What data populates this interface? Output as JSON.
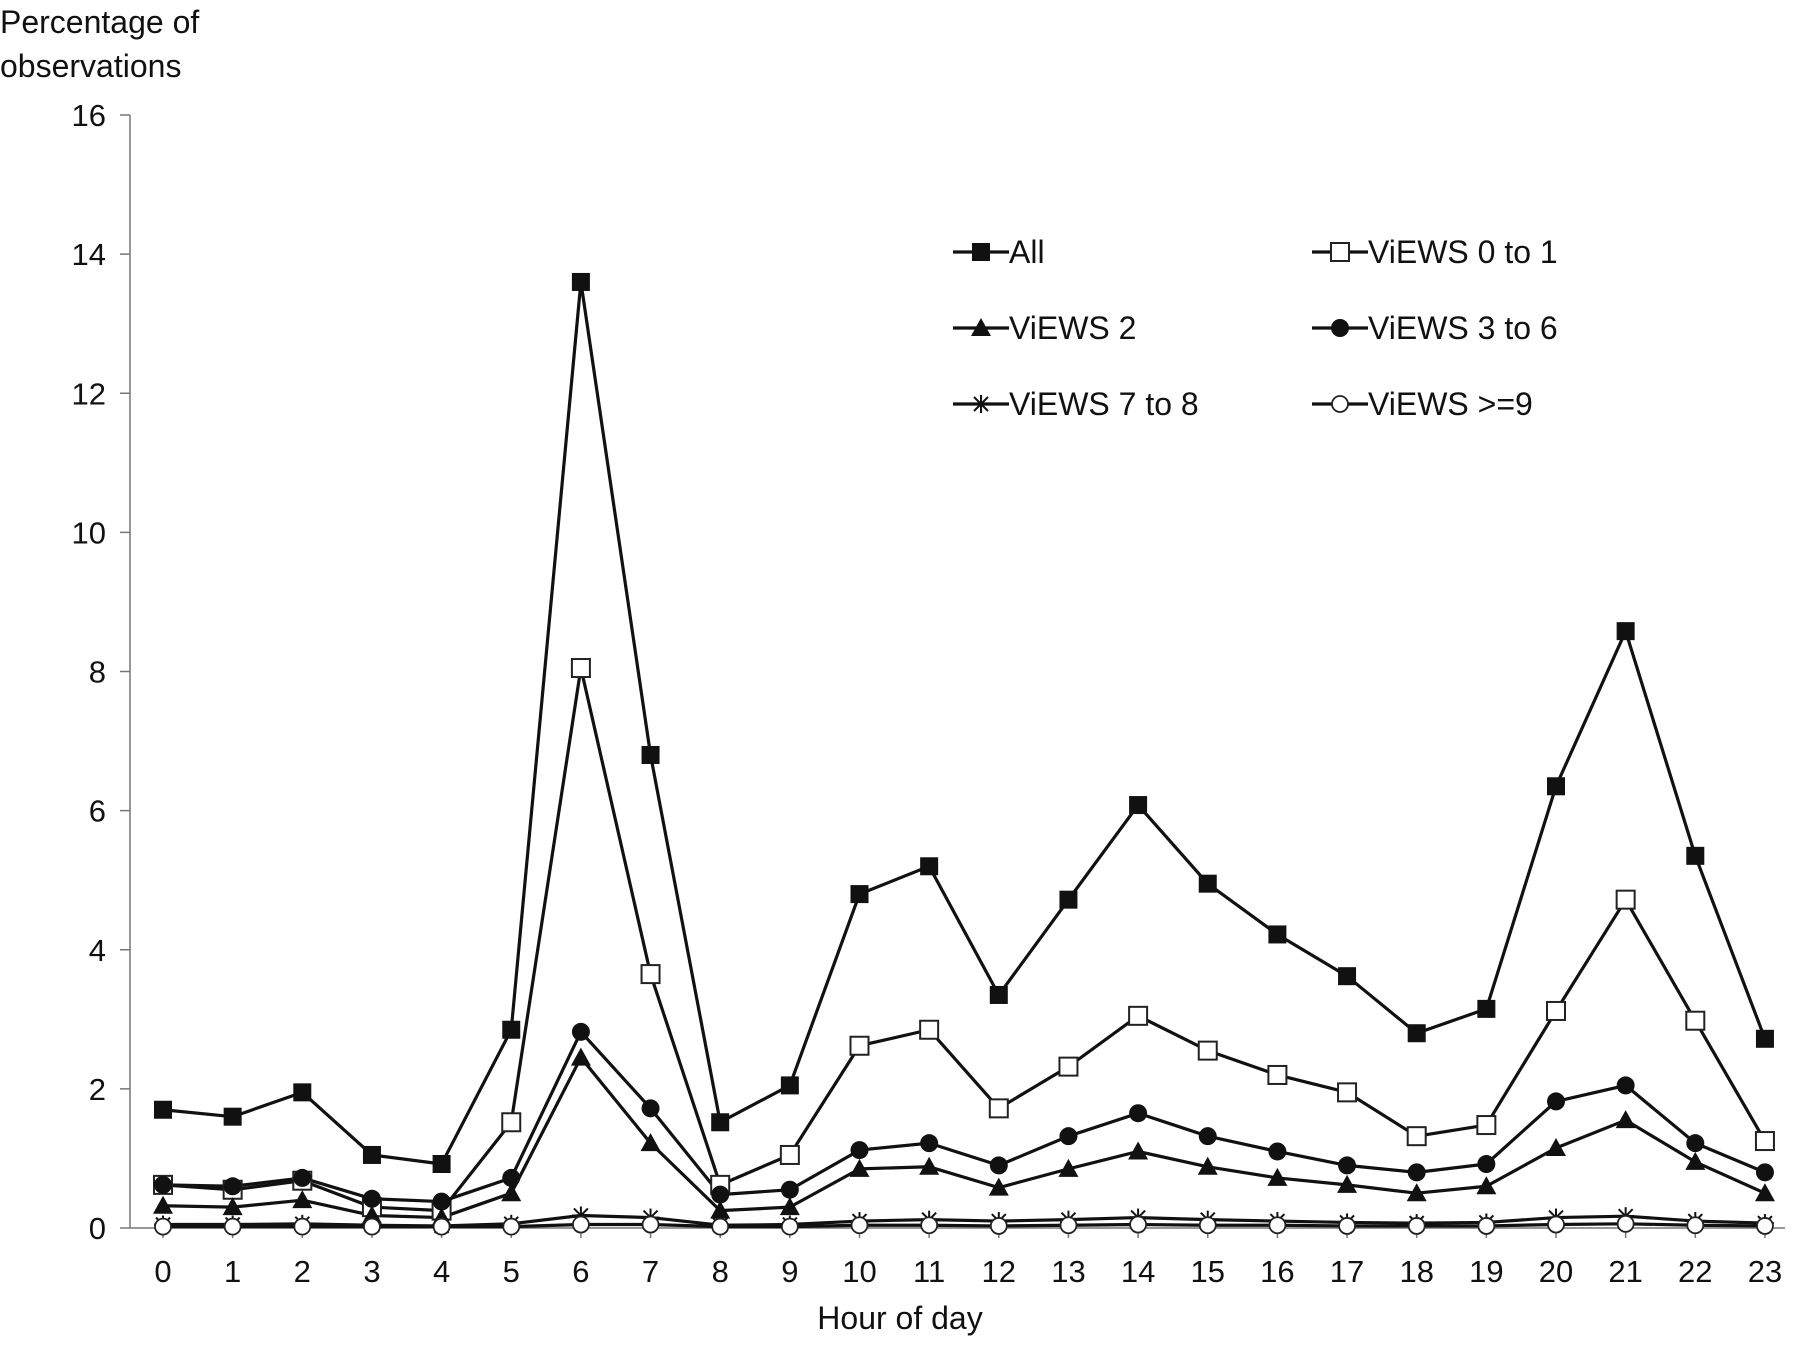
{
  "chart_data": {
    "type": "line",
    "ylabel": "Percentage of observations",
    "xlabel": "Hour of day",
    "ylim": [
      0,
      16
    ],
    "yticks": [
      0,
      2,
      4,
      6,
      8,
      10,
      12,
      14,
      16
    ],
    "x": [
      0,
      1,
      2,
      3,
      4,
      5,
      6,
      7,
      8,
      9,
      10,
      11,
      12,
      13,
      14,
      15,
      16,
      17,
      18,
      19,
      20,
      21,
      22,
      23
    ],
    "legend_placement": "top-right",
    "series": [
      {
        "name": "All",
        "marker": "square-filled",
        "values": [
          1.7,
          1.6,
          1.95,
          1.05,
          0.92,
          2.85,
          13.6,
          6.8,
          1.52,
          2.05,
          4.8,
          5.2,
          3.35,
          4.72,
          6.08,
          4.95,
          4.22,
          3.62,
          2.8,
          3.15,
          6.35,
          8.58,
          5.35,
          2.72
        ]
      },
      {
        "name": "ViEWS 0 to 1",
        "marker": "square-open",
        "values": [
          0.62,
          0.55,
          0.68,
          0.3,
          0.25,
          1.52,
          8.05,
          3.65,
          0.62,
          1.05,
          2.62,
          2.85,
          1.72,
          2.32,
          3.05,
          2.55,
          2.2,
          1.95,
          1.32,
          1.48,
          3.12,
          4.72,
          2.98,
          1.25
        ]
      },
      {
        "name": "ViEWS 2",
        "marker": "triangle-filled",
        "values": [
          0.32,
          0.3,
          0.4,
          0.18,
          0.15,
          0.5,
          2.45,
          1.22,
          0.25,
          0.3,
          0.85,
          0.88,
          0.58,
          0.85,
          1.1,
          0.88,
          0.72,
          0.62,
          0.5,
          0.6,
          1.15,
          1.55,
          0.95,
          0.5
        ]
      },
      {
        "name": "ViEWS 3 to 6",
        "marker": "circle-filled",
        "values": [
          0.62,
          0.6,
          0.72,
          0.42,
          0.38,
          0.72,
          2.82,
          1.72,
          0.48,
          0.55,
          1.12,
          1.22,
          0.9,
          1.32,
          1.65,
          1.32,
          1.1,
          0.9,
          0.8,
          0.92,
          1.82,
          2.05,
          1.22,
          0.8
        ]
      },
      {
        "name": "ViEWS 7 to 8",
        "marker": "asterisk",
        "values": [
          0.05,
          0.05,
          0.06,
          0.04,
          0.03,
          0.06,
          0.18,
          0.15,
          0.04,
          0.05,
          0.1,
          0.12,
          0.1,
          0.12,
          0.15,
          0.12,
          0.1,
          0.08,
          0.07,
          0.08,
          0.15,
          0.17,
          0.1,
          0.07
        ]
      },
      {
        "name": "ViEWS >=9",
        "marker": "circle-open",
        "values": [
          0.02,
          0.02,
          0.02,
          0.02,
          0.02,
          0.02,
          0.05,
          0.05,
          0.02,
          0.02,
          0.04,
          0.04,
          0.03,
          0.04,
          0.05,
          0.04,
          0.04,
          0.03,
          0.03,
          0.03,
          0.05,
          0.06,
          0.04,
          0.03
        ]
      }
    ]
  }
}
